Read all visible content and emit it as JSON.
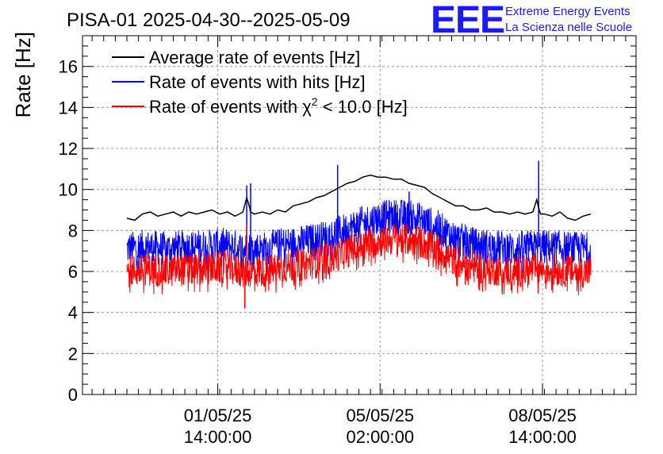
{
  "chart_data": {
    "type": "line",
    "title": "PISA-01 2025-04-30--2025-05-09",
    "ylabel": "Rate [Hz]",
    "xlabel": "",
    "ylim": [
      0,
      17.5
    ],
    "yticks": [
      "0",
      "2",
      "4",
      "6",
      "8",
      "10",
      "12",
      "14",
      "16"
    ],
    "x_domain_hours": [
      0,
      240
    ],
    "xticks": [
      {
        "hour": 47,
        "line1": "01/05/25",
        "line2": "14:00:00"
      },
      {
        "hour": 131,
        "line1": "05/05/25",
        "line2": "02:00:00"
      },
      {
        "hour": 215,
        "line1": "08/05/25",
        "line2": "14:00:00"
      }
    ],
    "grid": true,
    "legend_position": "top-left",
    "series": [
      {
        "name": "Average rate of events [Hz]",
        "color": "#000000",
        "hours": [
          0,
          4,
          8,
          12,
          16,
          20,
          24,
          28,
          32,
          36,
          40,
          44,
          48,
          52,
          56,
          60,
          62,
          63,
          64,
          66,
          70,
          74,
          78,
          82,
          86,
          90,
          94,
          98,
          102,
          106,
          110,
          114,
          118,
          122,
          126,
          130,
          134,
          138,
          142,
          146,
          150,
          154,
          158,
          162,
          166,
          170,
          174,
          178,
          182,
          186,
          190,
          194,
          198,
          202,
          206,
          210,
          212,
          213,
          214,
          216,
          220,
          224,
          228,
          232,
          236,
          240
        ],
        "values": [
          8.6,
          8.5,
          8.8,
          8.9,
          8.7,
          8.8,
          8.9,
          8.7,
          8.9,
          8.8,
          8.9,
          9.0,
          8.8,
          8.9,
          8.7,
          8.9,
          9.6,
          9.3,
          8.9,
          8.8,
          8.9,
          8.8,
          9.0,
          8.9,
          9.2,
          9.3,
          9.4,
          9.6,
          9.7,
          9.9,
          10.1,
          10.3,
          10.4,
          10.6,
          10.7,
          10.6,
          10.6,
          10.5,
          10.5,
          10.3,
          10.2,
          10.1,
          9.8,
          9.6,
          9.4,
          9.2,
          9.2,
          9.0,
          9.0,
          9.1,
          8.9,
          8.9,
          8.8,
          8.9,
          8.8,
          8.9,
          9.5,
          9.1,
          8.8,
          8.8,
          8.7,
          8.9,
          8.6,
          8.5,
          8.7,
          8.8
        ]
      },
      {
        "name": "Rate of events with hits [Hz]",
        "color": "#0000ff",
        "hours": [
          0,
          10,
          20,
          30,
          40,
          50,
          60,
          70,
          80,
          90,
          100,
          110,
          120,
          130,
          140,
          150,
          160,
          170,
          180,
          190,
          200,
          210,
          220,
          230,
          240
        ],
        "center": [
          7.1,
          7.2,
          7.1,
          7.2,
          7.2,
          7.3,
          7.1,
          7.1,
          7.3,
          7.4,
          7.6,
          7.9,
          8.3,
          8.6,
          8.7,
          8.6,
          8.2,
          7.6,
          7.3,
          7.2,
          7.1,
          7.2,
          7.2,
          7.1,
          7.1
        ],
        "spread": 0.85,
        "spikes": [
          {
            "hour": 62,
            "value": 10.2
          },
          {
            "hour": 64,
            "value": 10.3
          },
          {
            "hour": 109,
            "value": 11.2
          },
          {
            "hour": 146,
            "value": 9.9
          },
          {
            "hour": 213,
            "value": 11.4
          }
        ]
      },
      {
        "name": "Rate of events with χ2 < 10.0 [Hz]",
        "color": "#ff0000",
        "hours": [
          0,
          10,
          20,
          30,
          40,
          50,
          60,
          70,
          80,
          90,
          100,
          110,
          120,
          130,
          140,
          150,
          160,
          170,
          180,
          190,
          200,
          210,
          220,
          230,
          240
        ],
        "center": [
          6.0,
          6.1,
          6.0,
          6.1,
          6.1,
          6.2,
          6.0,
          6.0,
          6.2,
          6.3,
          6.5,
          6.8,
          7.2,
          7.5,
          7.6,
          7.5,
          7.1,
          6.5,
          6.2,
          6.1,
          6.0,
          6.1,
          6.1,
          6.0,
          6.0
        ],
        "spread": 0.8,
        "spikes": [
          {
            "hour": 62,
            "value": 8.3
          },
          {
            "hour": 61,
            "value": 4.2
          }
        ]
      }
    ],
    "legend": [
      {
        "label": "Average rate of events [Hz]",
        "color": "#000000"
      },
      {
        "label": "Rate of events with hits [Hz]",
        "color": "#0000ff"
      },
      {
        "label_pre": "Rate of events with ",
        "symbol": "χ",
        "sup": "2",
        "label_post": " < 10.0 [Hz]",
        "color": "#ff0000"
      }
    ]
  },
  "logo": {
    "mark": "EEE",
    "line1": "Extreme Energy Events",
    "line2": "La Scienza nelle Scuole"
  }
}
